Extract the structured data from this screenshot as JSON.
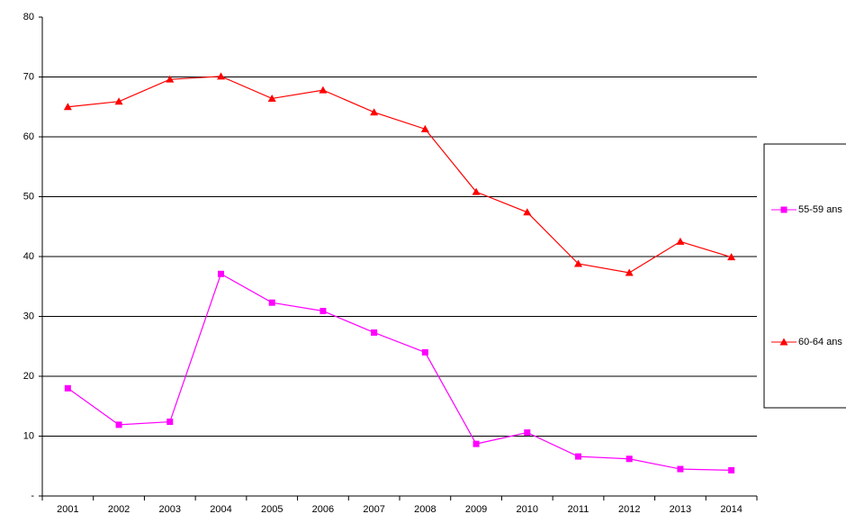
{
  "chart_data": {
    "type": "line",
    "categories": [
      "2001",
      "2002",
      "2003",
      "2004",
      "2005",
      "2006",
      "2007",
      "2008",
      "2009",
      "2010",
      "2011",
      "2012",
      "2013",
      "2014"
    ],
    "series": [
      {
        "name": "55-59 ans",
        "color": "#ff00ff",
        "marker": "square",
        "values": [
          18.0,
          11.9,
          12.4,
          37.1,
          32.3,
          30.9,
          27.3,
          24.0,
          8.7,
          10.6,
          6.6,
          6.2,
          4.5,
          4.3
        ]
      },
      {
        "name": "60-64 ans",
        "color": "#ff0000",
        "marker": "triangle",
        "values": [
          65.0,
          65.9,
          69.6,
          70.1,
          66.4,
          67.8,
          64.1,
          61.3,
          50.8,
          47.4,
          38.8,
          37.3,
          42.5,
          39.9
        ]
      }
    ],
    "ylim": [
      0,
      80
    ],
    "yticks": [
      {
        "value": 0,
        "label": "-"
      },
      10,
      20,
      30,
      40,
      50,
      60,
      70,
      80
    ],
    "grid": true,
    "legend": "right"
  }
}
